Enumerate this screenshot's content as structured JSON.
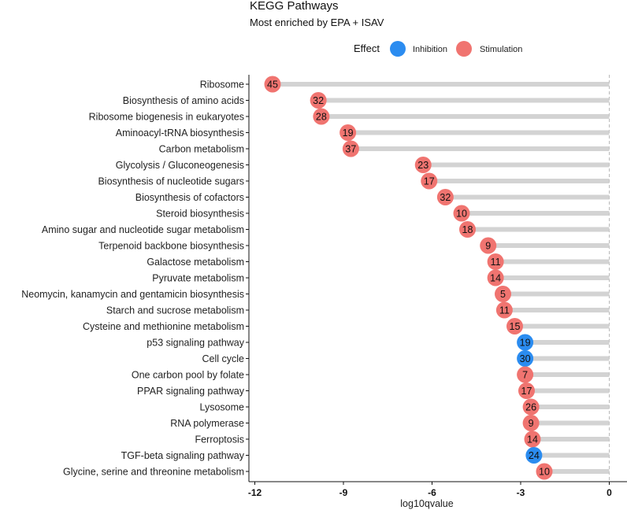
{
  "chart_data": {
    "type": "lollipop",
    "title": "KEGG Pathways",
    "subtitle": "Most enriched by EPA + ISAV",
    "xlabel": "log10qvalue",
    "ylabel": "",
    "xlim": [
      -12.2,
      0.6
    ],
    "xticks": [
      -12,
      -9,
      -6,
      -3,
      0
    ],
    "legend": {
      "title": "Effect",
      "placement": "top",
      "entries": [
        {
          "name": "Inhibition",
          "color": "#2b8cf0"
        },
        {
          "name": "Stimulation",
          "color": "#f07470"
        }
      ]
    },
    "stem_color": "#d3d3d3",
    "reference_line": 0,
    "pathways": [
      {
        "name": "Ribosome",
        "value": -11.4,
        "count": "45",
        "effect": "Stimulation"
      },
      {
        "name": "Biosynthesis of amino acids",
        "value": -9.85,
        "count": "32",
        "effect": "Stimulation"
      },
      {
        "name": "Ribosome biogenesis in eukaryotes",
        "value": -9.75,
        "count": "28",
        "effect": "Stimulation"
      },
      {
        "name": "Aminoacyl-tRNA biosynthesis",
        "value": -8.85,
        "count": "19",
        "effect": "Stimulation"
      },
      {
        "name": "Carbon metabolism",
        "value": -8.75,
        "count": "37",
        "effect": "Stimulation"
      },
      {
        "name": "Glycolysis / Gluconeogenesis",
        "value": -6.3,
        "count": "23",
        "effect": "Stimulation"
      },
      {
        "name": "Biosynthesis of nucleotide sugars",
        "value": -6.1,
        "count": "17",
        "effect": "Stimulation"
      },
      {
        "name": "Biosynthesis of cofactors",
        "value": -5.55,
        "count": "32",
        "effect": "Stimulation"
      },
      {
        "name": "Steroid biosynthesis",
        "value": -5.0,
        "count": "10",
        "effect": "Stimulation"
      },
      {
        "name": "Amino sugar and nucleotide sugar metabolism",
        "value": -4.8,
        "count": "18",
        "effect": "Stimulation"
      },
      {
        "name": "Terpenoid backbone biosynthesis",
        "value": -4.1,
        "count": "9",
        "effect": "Stimulation"
      },
      {
        "name": "Galactose metabolism",
        "value": -3.85,
        "count": "11",
        "effect": "Stimulation"
      },
      {
        "name": "Pyruvate metabolism",
        "value": -3.85,
        "count": "14",
        "effect": "Stimulation"
      },
      {
        "name": "Neomycin, kanamycin and gentamicin biosynthesis",
        "value": -3.6,
        "count": "5",
        "effect": "Stimulation"
      },
      {
        "name": "Starch and sucrose metabolism",
        "value": -3.55,
        "count": "11",
        "effect": "Stimulation"
      },
      {
        "name": "Cysteine and methionine metabolism",
        "value": -3.2,
        "count": "15",
        "effect": "Stimulation"
      },
      {
        "name": "p53 signaling pathway",
        "value": -2.85,
        "count": "19",
        "effect": "Inhibition"
      },
      {
        "name": "Cell cycle",
        "value": -2.85,
        "count": "30",
        "effect": "Inhibition"
      },
      {
        "name": "One carbon pool by folate",
        "value": -2.85,
        "count": "7",
        "effect": "Stimulation"
      },
      {
        "name": "PPAR signaling pathway",
        "value": -2.8,
        "count": "17",
        "effect": "Stimulation"
      },
      {
        "name": "Lysosome",
        "value": -2.65,
        "count": "26",
        "effect": "Stimulation"
      },
      {
        "name": "RNA polymerase",
        "value": -2.65,
        "count": "9",
        "effect": "Stimulation"
      },
      {
        "name": "Ferroptosis",
        "value": -2.6,
        "count": "14",
        "effect": "Stimulation"
      },
      {
        "name": "TGF-beta signaling pathway",
        "value": -2.55,
        "count": "24",
        "effect": "Inhibition"
      },
      {
        "name": "Glycine, serine and threonine metabolism",
        "value": -2.2,
        "count": "10",
        "effect": "Stimulation"
      }
    ]
  }
}
